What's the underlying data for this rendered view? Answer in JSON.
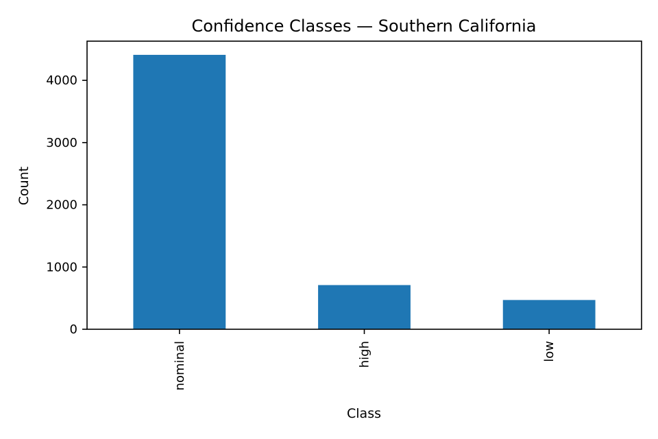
{
  "chart_data": {
    "type": "bar",
    "title": "Confidence Classes — Southern California",
    "xlabel": "Class",
    "ylabel": "Count",
    "categories": [
      "nominal",
      "high",
      "low"
    ],
    "values": [
      4410,
      710,
      470
    ],
    "ylim": [
      0,
      4630
    ],
    "yticks": [
      0,
      1000,
      2000,
      3000,
      4000
    ],
    "grid": false,
    "legend": "none",
    "bar_color": "#1f77b4"
  }
}
